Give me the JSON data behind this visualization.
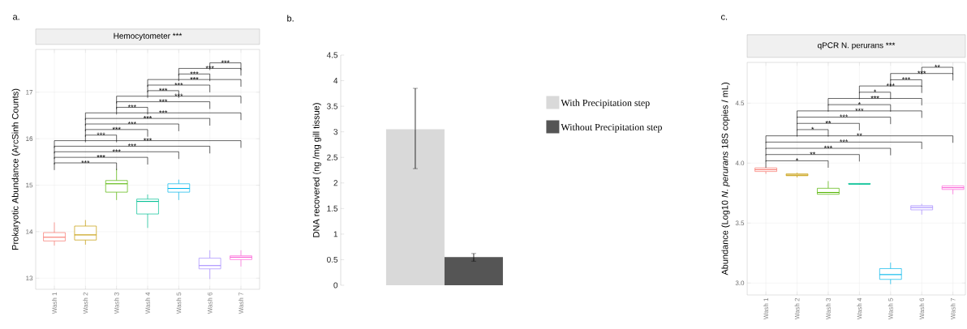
{
  "chart_data": [
    {
      "type": "box",
      "title": "Hemocytometer ***",
      "ylabel": "Prokaryotic Abundance (ArcSinh Counts)",
      "categories": [
        "Wash 1",
        "Wash 2",
        "Wash 3",
        "Wash 4",
        "Wash 5",
        "Wash 6",
        "Wash 7"
      ],
      "boxes": [
        {
          "low": 13.7,
          "q1": 13.8,
          "median": 13.88,
          "q3": 13.98,
          "high": 14.2
        },
        {
          "low": 13.72,
          "q1": 13.82,
          "median": 13.93,
          "q3": 14.12,
          "high": 14.25
        },
        {
          "low": 14.68,
          "q1": 14.85,
          "median": 15.03,
          "q3": 15.1,
          "high": 15.35
        },
        {
          "low": 14.08,
          "q1": 14.38,
          "median": 14.65,
          "q3": 14.7,
          "high": 14.8
        },
        {
          "low": 14.68,
          "q1": 14.85,
          "median": 14.93,
          "q3": 15.03,
          "high": 15.12
        },
        {
          "low": 12.98,
          "q1": 13.2,
          "median": 13.27,
          "q3": 13.43,
          "high": 13.6
        },
        {
          "low": 13.25,
          "q1": 13.4,
          "median": 13.45,
          "q3": 13.48,
          "high": 13.6
        }
      ],
      "colors": [
        "#f8766d",
        "#c49a00",
        "#53b400",
        "#00c094",
        "#00b6eb",
        "#a58aff",
        "#fb61d7"
      ],
      "ylim": [
        12.76,
        17.92
      ],
      "yticks": [
        13,
        14,
        15,
        16,
        17
      ],
      "grid": true,
      "annotations": [
        "a.",
        "***",
        "***",
        "***",
        "***",
        "***",
        "***",
        "***",
        "***",
        "***",
        "***",
        "***",
        "***",
        "***",
        "***",
        "***",
        "***",
        "***",
        "***",
        "***"
      ]
    },
    {
      "type": "bar",
      "ylabel": "DNA recovered (ng /mg gill tissue)",
      "categories": [
        null
      ],
      "series": [
        {
          "name": "With Precipitation step",
          "color": "#d9d9d9",
          "values": [
            3.05
          ],
          "errors": [
            [
              2.28,
              3.85
            ]
          ]
        },
        {
          "name": "Without Precipitation step",
          "color": "#555555",
          "values": [
            0.55
          ],
          "errors": [
            [
              0.47,
              0.62
            ]
          ]
        }
      ],
      "ylim": [
        0,
        4.5
      ],
      "yticks": [
        0,
        0.5,
        1,
        1.5,
        2,
        2.5,
        3,
        3.5,
        4,
        4.5
      ],
      "legend": "right",
      "annotations": [
        "b."
      ]
    },
    {
      "type": "box",
      "title": "qPCR N. perurans ***",
      "ylabel": "Abundance (Log10 *N. perurans* 18S copies / mL)",
      "categories": [
        "Wash 1",
        "Wash 2",
        "Wash 3",
        "Wash 4",
        "Wash 5",
        "Wash 6",
        "Wash 7"
      ],
      "boxes": [
        {
          "low": 3.91,
          "q1": 3.93,
          "median": 3.945,
          "q3": 3.96,
          "high": 3.96
        },
        {
          "low": 3.88,
          "q1": 3.895,
          "median": 3.9,
          "q3": 3.91,
          "high": 3.92
        },
        {
          "low": 3.74,
          "q1": 3.74,
          "median": 3.755,
          "q3": 3.79,
          "high": 3.85
        },
        {
          "low": 3.82,
          "q1": 3.825,
          "median": 3.825,
          "q3": 3.83,
          "high": 3.83
        },
        {
          "low": 2.99,
          "q1": 3.03,
          "median": 3.07,
          "q3": 3.12,
          "high": 3.17
        },
        {
          "low": 3.57,
          "q1": 3.61,
          "median": 3.63,
          "q3": 3.645,
          "high": 3.66
        },
        {
          "low": 3.74,
          "q1": 3.78,
          "median": 3.795,
          "q3": 3.81,
          "high": 3.81
        }
      ],
      "colors": [
        "#f8766d",
        "#c49a00",
        "#53b400",
        "#00c094",
        "#00b6eb",
        "#a58aff",
        "#fb61d7"
      ],
      "ylim": [
        2.9,
        4.84
      ],
      "yticks": [
        {
          "value": 3.0,
          "label": "3.0"
        },
        {
          "value": 3.5,
          "label": "3.5"
        },
        {
          "value": 4.0,
          "label": "4.0"
        },
        {
          "value": 4.5,
          "label": "4.5"
        }
      ],
      "grid": true,
      "annotations": [
        "c.",
        "*",
        "**",
        "***",
        "***",
        "**",
        "*",
        "**",
        "***",
        "***",
        "*",
        "***",
        "*",
        "***",
        "***",
        "***",
        "**"
      ]
    }
  ]
}
